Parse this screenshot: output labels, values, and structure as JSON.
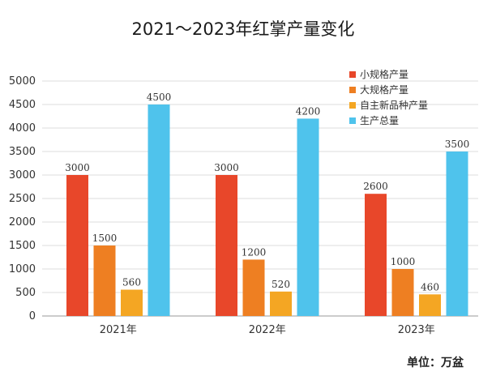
{
  "chart_data": {
    "type": "bar",
    "title": "2021～2023年红掌产量变化",
    "categories": [
      "2021年",
      "2022年",
      "2023年"
    ],
    "series": [
      {
        "name": "小规格产量",
        "color": "#e8472a",
        "values": [
          3000,
          3000,
          2600
        ]
      },
      {
        "name": "大规格产量",
        "color": "#ee7f22",
        "values": [
          1500,
          1200,
          1000
        ]
      },
      {
        "name": "自主新品种产量",
        "color": "#f4a623",
        "values": [
          560,
          520,
          460
        ]
      },
      {
        "name": "生产总量",
        "color": "#4fc3ec",
        "values": [
          4500,
          4200,
          3500
        ]
      }
    ],
    "ylim": [
      0,
      5000
    ],
    "yticks": [
      0,
      500,
      1000,
      1500,
      2000,
      2500,
      3000,
      3500,
      4000,
      4500,
      5000
    ],
    "grid": true,
    "legend_position": "top-right",
    "unit_note": "单位：万盆",
    "xlabel": "",
    "ylabel": ""
  }
}
